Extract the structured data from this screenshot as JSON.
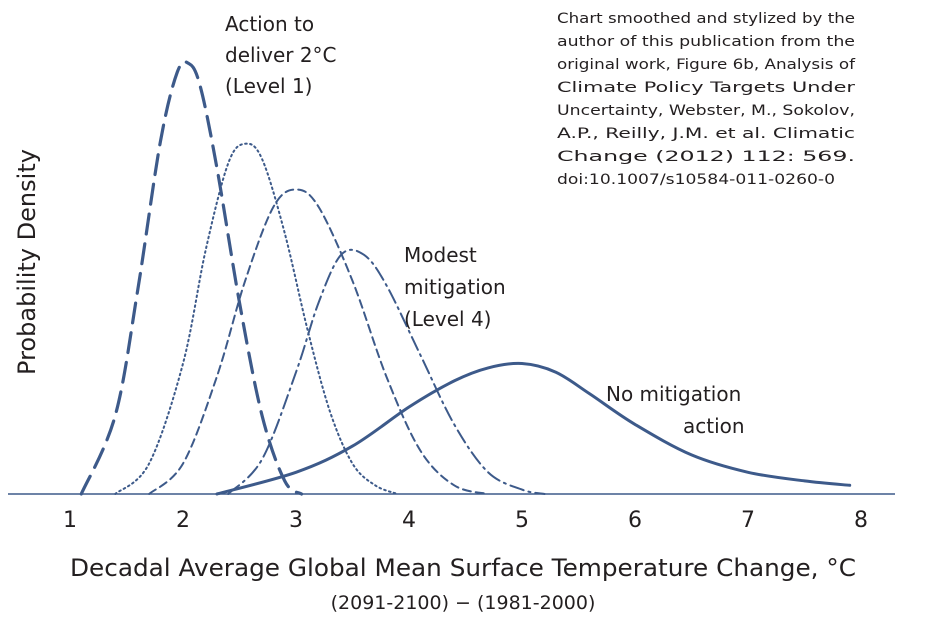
{
  "chart_data": {
    "type": "line",
    "xlabel": "Decadal Average Global Mean Surface Temperature Change, °C",
    "xlabel_sub": "(2091-2100) − (1981-2000)",
    "ylabel": "Probability Density",
    "xlim": [
      0.5,
      8.3
    ],
    "ylim": [
      0,
      1.0
    ],
    "x_ticks": [
      "1",
      "2",
      "3",
      "4",
      "5",
      "6",
      "7",
      "8"
    ],
    "grid": false,
    "series": [
      {
        "line_style": "long-dash",
        "color": "#3d5a8a",
        "x": [
          1.1,
          1.4,
          1.6,
          1.8,
          1.95,
          2.05,
          2.15,
          2.3,
          2.5,
          2.7,
          2.9,
          3.05
        ],
        "y": [
          0.0,
          0.18,
          0.47,
          0.81,
          0.97,
          0.99,
          0.94,
          0.75,
          0.44,
          0.18,
          0.03,
          0.0
        ]
      },
      {
        "line_style": "dotted",
        "color": "#3d5a8a",
        "x": [
          1.4,
          1.7,
          2.0,
          2.2,
          2.4,
          2.55,
          2.7,
          2.9,
          3.1,
          3.3,
          3.5,
          3.7,
          3.9
        ],
        "y": [
          0.0,
          0.07,
          0.3,
          0.56,
          0.76,
          0.805,
          0.77,
          0.6,
          0.38,
          0.19,
          0.07,
          0.02,
          0.0
        ]
      },
      {
        "line_style": "short-dash",
        "color": "#3d5a8a",
        "x": [
          1.7,
          2.0,
          2.3,
          2.55,
          2.8,
          3.0,
          3.2,
          3.5,
          3.8,
          4.1,
          4.4,
          4.7
        ],
        "y": [
          0.0,
          0.07,
          0.27,
          0.49,
          0.66,
          0.7,
          0.66,
          0.49,
          0.27,
          0.1,
          0.02,
          0.0
        ]
      },
      {
        "line_style": "dash-dot",
        "color": "#3d5a8a",
        "x": [
          2.4,
          2.7,
          3.0,
          3.2,
          3.4,
          3.6,
          3.8,
          4.1,
          4.4,
          4.7,
          5.0,
          5.2
        ],
        "y": [
          0.0,
          0.08,
          0.28,
          0.44,
          0.55,
          0.55,
          0.48,
          0.32,
          0.16,
          0.05,
          0.01,
          0.0
        ]
      },
      {
        "line_style": "solid",
        "color": "#3d5a8a",
        "x": [
          2.3,
          3.0,
          3.5,
          4.0,
          4.4,
          4.7,
          5.0,
          5.3,
          5.6,
          6.0,
          6.5,
          7.0,
          7.5,
          7.9
        ],
        "y": [
          0.0,
          0.05,
          0.11,
          0.2,
          0.26,
          0.29,
          0.3,
          0.28,
          0.23,
          0.16,
          0.09,
          0.05,
          0.03,
          0.02
        ]
      }
    ],
    "annotations": [
      {
        "lines": [
          "Action to",
          "deliver 2°C",
          "(Level 1)"
        ]
      },
      {
        "lines": [
          "Modest",
          "mitigation",
          "(Level 4)"
        ]
      },
      {
        "lines": [
          "No mitigation",
          "action"
        ]
      }
    ],
    "source_note": [
      "Chart smoothed and stylized by the",
      "author of this publication from the",
      "original work, Figure 6b, Analysis of",
      "Climate Policy Targets Under",
      "Uncertainty, Webster, M., Sokolov,",
      "A.P., Reilly, J.M. et al. Climatic",
      "Change (2012) 112: 569.",
      "doi:10.1007/s10584-011-0260-0"
    ]
  }
}
